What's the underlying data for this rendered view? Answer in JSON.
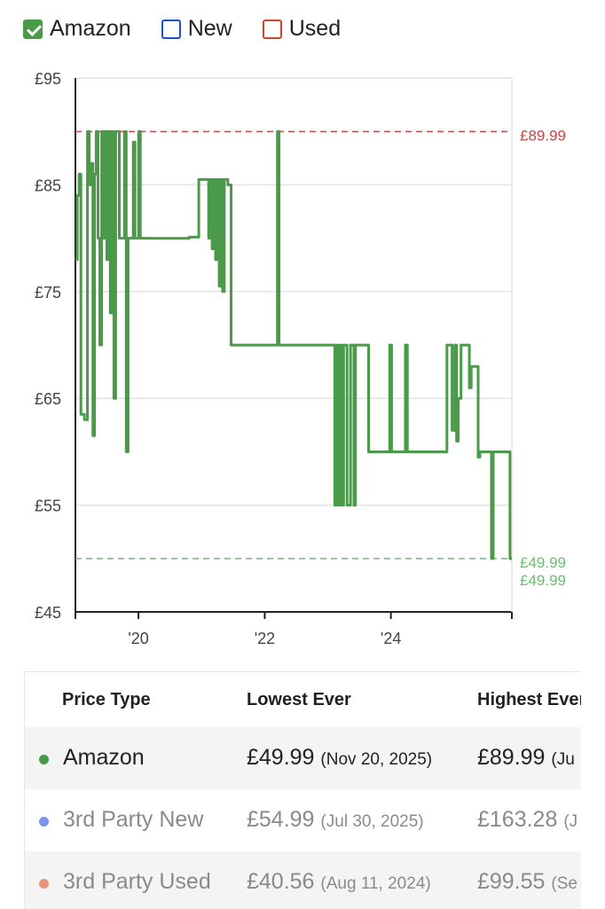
{
  "legend": [
    {
      "label": "Amazon",
      "checked": true,
      "color": "#4a9a4a"
    },
    {
      "label": "New",
      "checked": false,
      "color": "#1f4fc4"
    },
    {
      "label": "Used",
      "checked": false,
      "color": "#c8472a"
    }
  ],
  "chart_data": {
    "type": "line",
    "title": "",
    "xlabel": "",
    "ylabel": "",
    "ylim": [
      45,
      95
    ],
    "xlim": [
      "2019-01-01",
      "2025-12-01"
    ],
    "y_ticks": [
      95,
      85,
      75,
      65,
      55,
      45
    ],
    "y_tick_labels": [
      "£95",
      "£85",
      "£75",
      "£65",
      "£55",
      "£45"
    ],
    "x_ticks": [
      "2020-01-01",
      "2022-01-01",
      "2024-01-01"
    ],
    "x_tick_labels": [
      "'20",
      "'22",
      "'24"
    ],
    "grid": true,
    "reference_lines": [
      {
        "value": 89.99,
        "label": "£89.99",
        "color": "#cc4444"
      },
      {
        "value": 49.99,
        "label": "£49.99",
        "color": "#6cbf6c"
      }
    ],
    "current_price_label": "£49.99",
    "series": [
      {
        "name": "Amazon",
        "color": "#4a9a4a",
        "points": [
          [
            "2019-01-01",
            78.0
          ],
          [
            "2019-01-12",
            84.0
          ],
          [
            "2019-01-22",
            86.0
          ],
          [
            "2019-02-02",
            63.5
          ],
          [
            "2019-02-22",
            63.0
          ],
          [
            "2019-03-12",
            89.99
          ],
          [
            "2019-03-22",
            85.0
          ],
          [
            "2019-04-02",
            87.0
          ],
          [
            "2019-04-12",
            61.5
          ],
          [
            "2019-04-22",
            86.0
          ],
          [
            "2019-05-01",
            89.99
          ],
          [
            "2019-05-12",
            80.0
          ],
          [
            "2019-05-22",
            70.0
          ],
          [
            "2019-06-02",
            89.99
          ],
          [
            "2019-06-12",
            80.0
          ],
          [
            "2019-06-22",
            89.99
          ],
          [
            "2019-07-02",
            78.0
          ],
          [
            "2019-07-12",
            89.99
          ],
          [
            "2019-07-22",
            73.0
          ],
          [
            "2019-08-02",
            89.99
          ],
          [
            "2019-08-12",
            65.0
          ],
          [
            "2019-08-22",
            89.99
          ],
          [
            "2019-09-02",
            89.99
          ],
          [
            "2019-09-12",
            80.0
          ],
          [
            "2019-10-12",
            89.99
          ],
          [
            "2019-10-22",
            60.0
          ],
          [
            "2019-11-02",
            80.0
          ],
          [
            "2019-11-22",
            80.0
          ],
          [
            "2019-12-02",
            89.0
          ],
          [
            "2019-12-12",
            80.0
          ],
          [
            "2020-01-02",
            89.99
          ],
          [
            "2020-01-12",
            80.0
          ],
          [
            "2020-02-10",
            79.99
          ],
          [
            "2020-10-10",
            79.99
          ],
          [
            "2020-10-20",
            80.1
          ],
          [
            "2020-12-05",
            80.1
          ],
          [
            "2020-12-15",
            85.5
          ],
          [
            "2021-02-01",
            85.5
          ],
          [
            "2021-02-10",
            80.0
          ],
          [
            "2021-02-20",
            85.5
          ],
          [
            "2021-03-02",
            79.0
          ],
          [
            "2021-03-12",
            85.5
          ],
          [
            "2021-03-22",
            78.0
          ],
          [
            "2021-04-02",
            85.5
          ],
          [
            "2021-04-12",
            75.5
          ],
          [
            "2021-04-22",
            85.5
          ],
          [
            "2021-05-02",
            75.0
          ],
          [
            "2021-05-12",
            85.5
          ],
          [
            "2021-06-01",
            84.99
          ],
          [
            "2021-06-20",
            69.99
          ],
          [
            "2022-03-10",
            69.99
          ],
          [
            "2022-03-15",
            89.99
          ],
          [
            "2022-03-25",
            69.99
          ],
          [
            "2022-11-20",
            69.99
          ],
          [
            "2023-01-20",
            69.99
          ],
          [
            "2023-02-10",
            55.0
          ],
          [
            "2023-02-20",
            69.99
          ],
          [
            "2023-03-02",
            55.0
          ],
          [
            "2023-03-12",
            69.99
          ],
          [
            "2023-03-22",
            55.0
          ],
          [
            "2023-04-02",
            69.99
          ],
          [
            "2023-04-22",
            55.0
          ],
          [
            "2023-05-12",
            69.99
          ],
          [
            "2023-06-01",
            54.99
          ],
          [
            "2023-06-10",
            69.99
          ],
          [
            "2023-08-15",
            69.99
          ],
          [
            "2023-08-25",
            59.99
          ],
          [
            "2023-12-15",
            59.99
          ],
          [
            "2023-12-25",
            69.99
          ],
          [
            "2024-01-05",
            59.99
          ],
          [
            "2024-03-15",
            59.99
          ],
          [
            "2024-03-25",
            69.99
          ],
          [
            "2024-04-05",
            59.99
          ],
          [
            "2024-11-10",
            59.99
          ],
          [
            "2024-11-20",
            69.99
          ],
          [
            "2024-12-10",
            69.99
          ],
          [
            "2024-12-20",
            62.0
          ],
          [
            "2025-01-05",
            69.99
          ],
          [
            "2025-01-15",
            61.0
          ],
          [
            "2025-01-25",
            65.0
          ],
          [
            "2025-02-10",
            69.99
          ],
          [
            "2025-03-20",
            69.99
          ],
          [
            "2025-03-30",
            66.0
          ],
          [
            "2025-04-10",
            67.99
          ],
          [
            "2025-05-10",
            67.99
          ],
          [
            "2025-05-20",
            59.5
          ],
          [
            "2025-05-30",
            59.99
          ],
          [
            "2025-07-30",
            59.99
          ],
          [
            "2025-08-05",
            49.99
          ],
          [
            "2025-08-15",
            59.99
          ],
          [
            "2025-11-10",
            59.99
          ],
          [
            "2025-11-20",
            49.99
          ],
          [
            "2025-12-01",
            49.99
          ]
        ]
      }
    ]
  },
  "table": {
    "headers": [
      "Price Type",
      "Lowest Ever",
      "Highest Ever"
    ],
    "rows": [
      {
        "name": "Amazon",
        "lowest": "£49.99",
        "lowest_date": "(Nov 20, 2025)",
        "highest": "£89.99",
        "highest_date": "(Ju"
      },
      {
        "name": "3rd Party New",
        "lowest": "£54.99",
        "lowest_date": "(Jul 30, 2025)",
        "highest": "£163.28",
        "highest_date": "(J"
      },
      {
        "name": "3rd Party Used",
        "lowest": "£40.56",
        "lowest_date": "(Aug 11, 2024)",
        "highest": "£99.55",
        "highest_date": "(Se"
      }
    ]
  }
}
